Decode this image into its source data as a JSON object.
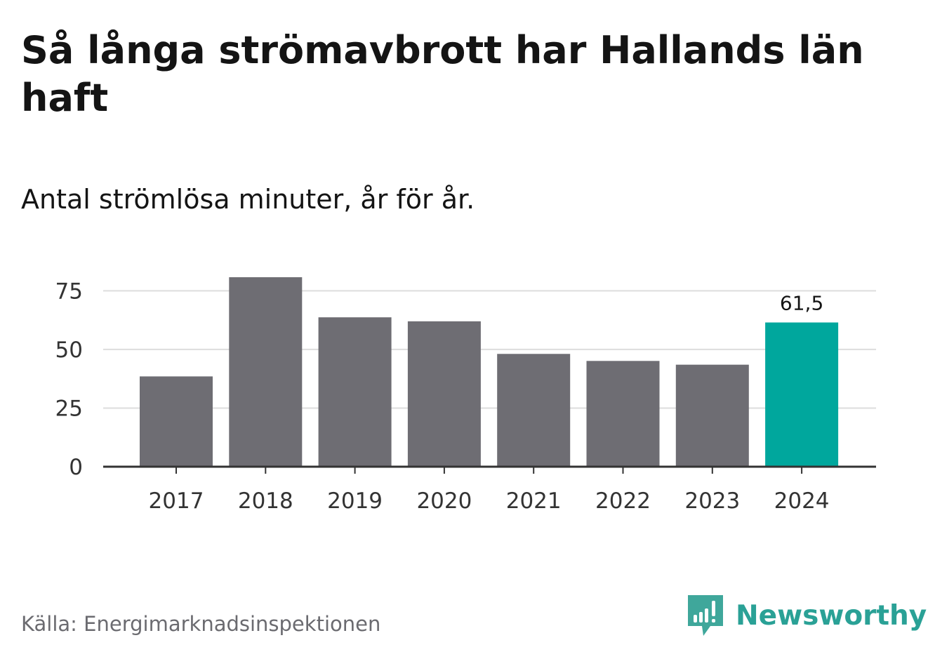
{
  "title": "Så långa strömavbrott har Hallands län haft",
  "subtitle": "Antal strömlösa minuter, år för år.",
  "source": "Källa: Energimarknadsinspektionen",
  "brand": {
    "name": "Newsworthy",
    "logo_icon": "bar-chart-speech-bubble-icon",
    "color": "#2aa196"
  },
  "colors": {
    "bar_default": "#6e6d73",
    "bar_highlight": "#00a79d",
    "gridline": "#dddddd",
    "axis": "#333333",
    "tick_text": "#333333"
  },
  "chart_data": {
    "type": "bar",
    "title": "Så långa strömavbrott har Hallands län haft",
    "subtitle": "Antal strömlösa minuter, år för år.",
    "xlabel": "",
    "ylabel": "",
    "categories": [
      "2017",
      "2018",
      "2019",
      "2020",
      "2021",
      "2022",
      "2023",
      "2024"
    ],
    "values": [
      38.5,
      80.8,
      63.7,
      62.0,
      48.1,
      45.1,
      43.5,
      61.5
    ],
    "ylim": [
      0,
      80.8
    ],
    "yticks": [
      0,
      25,
      50,
      75
    ],
    "ytick_labels": [
      "0",
      "25",
      "50",
      "75"
    ],
    "grid": true,
    "highlight_category": "2024",
    "data_labels": [
      {
        "category": "2024",
        "text": "61,5"
      }
    ]
  }
}
